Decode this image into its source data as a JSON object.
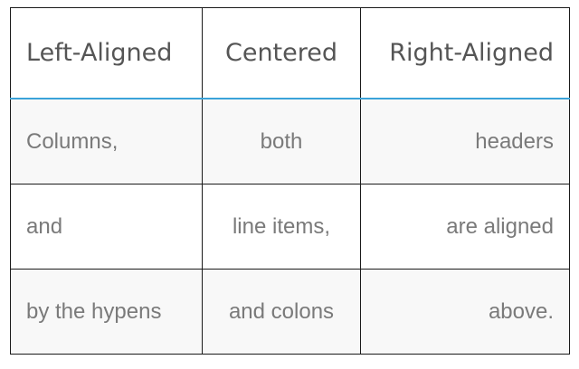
{
  "table": {
    "headers": [
      "Left-Aligned",
      "Centered",
      "Right-Aligned"
    ],
    "alignments": [
      "left",
      "center",
      "right"
    ],
    "rows": [
      [
        "Columns,",
        "both",
        "headers"
      ],
      [
        "and",
        "line items,",
        "are aligned"
      ],
      [
        "by the hypens",
        "and colons",
        "above."
      ]
    ]
  },
  "colors": {
    "border": "#1a1a1a",
    "header_divider": "#3aa3d9",
    "header_text": "#555555",
    "body_text": "#7a7a7a",
    "striped_row_bg": "#f8f8f8"
  }
}
